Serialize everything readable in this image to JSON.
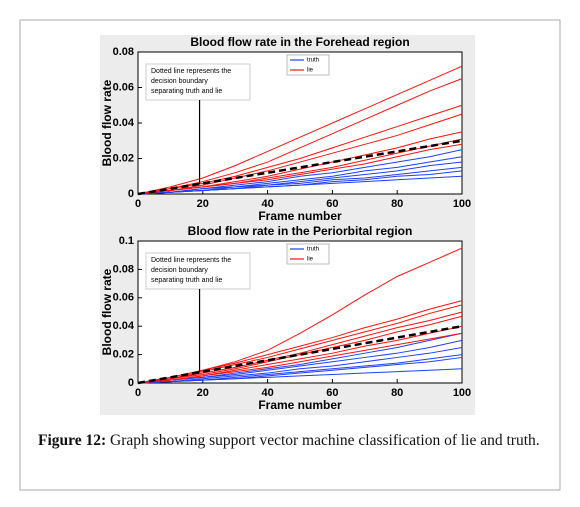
{
  "chart_data": [
    {
      "type": "line",
      "title": "Blood flow rate in the Forehead region",
      "xlabel": "Frame number",
      "ylabel": "Blood flow rate",
      "x": [
        0,
        10,
        20,
        30,
        40,
        50,
        60,
        70,
        80,
        90,
        100
      ],
      "xlim": [
        0,
        100
      ],
      "xticks": [
        0,
        20,
        40,
        60,
        80,
        100
      ],
      "ylim": [
        0,
        0.08
      ],
      "yticks": [
        0,
        0.02,
        0.04,
        0.06,
        0.08
      ],
      "legend": "upper right",
      "series": [
        {
          "name": "truth",
          "color": "#1f3fff",
          "lines": [
            [
              0,
              0.001,
              0.003,
              0.005,
              0.007,
              0.01,
              0.012,
              0.015,
              0.018,
              0.021,
              0.025
            ],
            [
              0,
              0.001,
              0.003,
              0.004,
              0.006,
              0.008,
              0.01,
              0.013,
              0.015,
              0.018,
              0.021
            ],
            [
              0,
              0.001,
              0.002,
              0.004,
              0.005,
              0.007,
              0.009,
              0.011,
              0.013,
              0.016,
              0.018
            ],
            [
              0,
              0.001,
              0.002,
              0.003,
              0.005,
              0.006,
              0.008,
              0.009,
              0.011,
              0.013,
              0.015
            ],
            [
              0,
              0.001,
              0.002,
              0.003,
              0.004,
              0.005,
              0.007,
              0.008,
              0.01,
              0.011,
              0.013
            ],
            [
              0,
              0.001,
              0.002,
              0.003,
              0.004,
              0.005,
              0.006,
              0.007,
              0.008,
              0.009,
              0.01
            ]
          ]
        },
        {
          "name": "lie",
          "color": "#ff1010",
          "lines": [
            [
              0,
              0.004,
              0.009,
              0.016,
              0.024,
              0.032,
              0.04,
              0.048,
              0.056,
              0.064,
              0.072
            ],
            [
              0,
              0.003,
              0.007,
              0.012,
              0.018,
              0.026,
              0.034,
              0.042,
              0.05,
              0.058,
              0.065
            ],
            [
              0,
              0.003,
              0.006,
              0.01,
              0.015,
              0.02,
              0.026,
              0.032,
              0.038,
              0.044,
              0.05
            ],
            [
              0,
              0.002,
              0.005,
              0.009,
              0.013,
              0.018,
              0.023,
              0.028,
              0.033,
              0.039,
              0.045
            ],
            [
              0,
              0.002,
              0.004,
              0.007,
              0.01,
              0.014,
              0.018,
              0.022,
              0.026,
              0.031,
              0.035
            ],
            [
              0,
              0.002,
              0.004,
              0.006,
              0.009,
              0.012,
              0.015,
              0.019,
              0.023,
              0.027,
              0.031
            ],
            [
              0,
              0.002,
              0.004,
              0.006,
              0.008,
              0.011,
              0.014,
              0.017,
              0.021,
              0.025,
              0.028
            ]
          ]
        }
      ],
      "boundary": {
        "values": [
          0,
          0.003,
          0.006,
          0.009,
          0.012,
          0.015,
          0.018,
          0.021,
          0.024,
          0.027,
          0.03
        ],
        "color": "#000000"
      },
      "annotation": {
        "text": [
          "Dotted line represents the",
          "decision boundary",
          "separating truth and lie"
        ],
        "x": 19
      }
    },
    {
      "type": "line",
      "title": "Blood flow rate in the Periorbital region",
      "xlabel": "Frame number",
      "ylabel": "Blood flow rate",
      "x": [
        0,
        10,
        20,
        30,
        40,
        50,
        60,
        70,
        80,
        90,
        100
      ],
      "xlim": [
        0,
        100
      ],
      "xticks": [
        0,
        20,
        40,
        60,
        80,
        100
      ],
      "ylim": [
        0,
        0.1
      ],
      "yticks": [
        0,
        0.02,
        0.04,
        0.06,
        0.08,
        0.1
      ],
      "legend": "upper right",
      "series": [
        {
          "name": "truth",
          "color": "#1f3fff",
          "lines": [
            [
              0,
              0.002,
              0.004,
              0.007,
              0.01,
              0.013,
              0.017,
              0.021,
              0.025,
              0.03,
              0.035
            ],
            [
              0,
              0.002,
              0.004,
              0.006,
              0.009,
              0.012,
              0.015,
              0.018,
              0.021,
              0.025,
              0.03
            ],
            [
              0,
              0.001,
              0.003,
              0.005,
              0.007,
              0.01,
              0.012,
              0.015,
              0.018,
              0.021,
              0.025
            ],
            [
              0,
              0.001,
              0.002,
              0.004,
              0.006,
              0.008,
              0.01,
              0.012,
              0.014,
              0.017,
              0.02
            ],
            [
              0,
              0.001,
              0.002,
              0.003,
              0.005,
              0.007,
              0.009,
              0.011,
              0.013,
              0.015,
              0.018
            ],
            [
              0,
              0.001,
              0.002,
              0.003,
              0.004,
              0.005,
              0.006,
              0.007,
              0.008,
              0.009,
              0.01
            ]
          ]
        },
        {
          "name": "lie",
          "color": "#ff1010",
          "lines": [
            [
              0,
              0.004,
              0.009,
              0.015,
              0.023,
              0.035,
              0.048,
              0.062,
              0.075,
              0.085,
              0.095
            ],
            [
              0,
              0.004,
              0.009,
              0.014,
              0.02,
              0.026,
              0.032,
              0.039,
              0.045,
              0.052,
              0.058
            ],
            [
              0,
              0.003,
              0.008,
              0.013,
              0.018,
              0.024,
              0.03,
              0.036,
              0.042,
              0.049,
              0.055
            ],
            [
              0,
              0.003,
              0.007,
              0.011,
              0.016,
              0.021,
              0.027,
              0.033,
              0.039,
              0.044,
              0.05
            ],
            [
              0,
              0.003,
              0.006,
              0.01,
              0.015,
              0.02,
              0.025,
              0.03,
              0.036,
              0.041,
              0.047
            ],
            [
              0,
              0.002,
              0.005,
              0.009,
              0.013,
              0.017,
              0.021,
              0.026,
              0.03,
              0.035,
              0.04
            ],
            [
              0,
              0.002,
              0.005,
              0.008,
              0.011,
              0.015,
              0.019,
              0.023,
              0.027,
              0.031,
              0.035
            ]
          ]
        }
      ],
      "boundary": {
        "values": [
          0,
          0.004,
          0.008,
          0.012,
          0.016,
          0.02,
          0.024,
          0.028,
          0.032,
          0.036,
          0.04
        ],
        "color": "#000000"
      },
      "annotation": {
        "text": [
          "Dotted line represents the",
          "decision boundary",
          "separating truth and lie"
        ],
        "x": 19
      }
    }
  ],
  "caption": {
    "label": "Figure 12:",
    "text": "Graph showing support vector machine classification of lie and truth."
  }
}
